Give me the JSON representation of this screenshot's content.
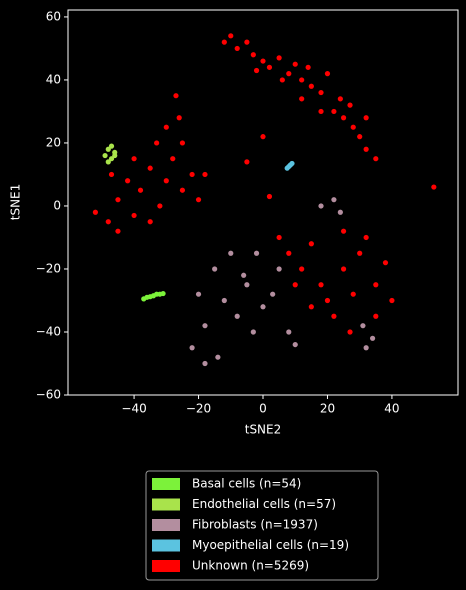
{
  "chart_data": {
    "type": "scatter",
    "x_label": "tSNE2",
    "y_label": "tSNE1",
    "xlim": [
      -60.5,
      60.5
    ],
    "ylim": [
      -60,
      62.2
    ],
    "xticks": [
      {
        "value": -40,
        "label": "−40"
      },
      {
        "value": -20,
        "label": "−20"
      },
      0,
      20,
      40
    ],
    "yticks": [
      {
        "value": -60,
        "label": "−60"
      },
      {
        "value": -40,
        "label": "−40"
      },
      {
        "value": -20,
        "label": "−20"
      },
      0,
      20,
      40,
      60
    ],
    "legend_position": "below",
    "series": [
      {
        "name": "Basal cells (n=54)",
        "color": "#7cf23a",
        "x": [
          -37,
          -36,
          -35,
          -34,
          -33,
          -32,
          -31
        ],
        "values": [
          -29.5,
          -29,
          -28.8,
          -28.5,
          -28,
          -28,
          -27.8
        ]
      },
      {
        "name": "Endothelial cells (n=57)",
        "color": "#a9e34b",
        "x": [
          -49,
          -48,
          -47,
          -47,
          -46,
          -48,
          -46
        ],
        "values": [
          16,
          18,
          15,
          19,
          17,
          14,
          16
        ]
      },
      {
        "name": "Fibroblasts (n=1937)",
        "color": "#b38e9f",
        "x": [
          -20,
          -15,
          -10,
          -5,
          -8,
          -12,
          -18,
          -3,
          0,
          3,
          5,
          -22,
          -18,
          -14,
          -6,
          -2,
          8,
          10,
          18,
          22,
          24,
          31,
          34,
          32
        ],
        "values": [
          -28,
          -20,
          -15,
          -25,
          -35,
          -30,
          -38,
          -40,
          -32,
          -28,
          -20,
          -45,
          -50,
          -48,
          -22,
          -15,
          -40,
          -44,
          0,
          2,
          -2,
          -38,
          -42,
          -45
        ]
      },
      {
        "name": "Myoepithelial cells (n=19)",
        "color": "#5bc3e0",
        "x": [
          8,
          8.5,
          9,
          7.5
        ],
        "values": [
          12.5,
          13,
          13.5,
          12
        ]
      },
      {
        "name": "Unknown (n=5269)",
        "color": "#ff0000",
        "x": [
          -10,
          -8,
          -5,
          -12,
          -3,
          0,
          2,
          5,
          8,
          10,
          12,
          15,
          18,
          14,
          20,
          22,
          25,
          28,
          30,
          32,
          35,
          24,
          27,
          32,
          18,
          12,
          6,
          -2,
          -52,
          -48,
          -45,
          -42,
          -40,
          -38,
          -35,
          -32,
          -30,
          -28,
          -25,
          -22,
          -20,
          -18,
          -30,
          -26,
          -27,
          -35,
          -45,
          -40,
          -33,
          -25,
          -47,
          5,
          8,
          12,
          15,
          18,
          20,
          22,
          25,
          28,
          30,
          32,
          35,
          38,
          40,
          27,
          15,
          10,
          25,
          35,
          53,
          2,
          0,
          -5
        ],
        "values": [
          54,
          50,
          52,
          52,
          48,
          46,
          44,
          47,
          42,
          45,
          40,
          38,
          36,
          44,
          42,
          30,
          28,
          25,
          22,
          18,
          15,
          34,
          32,
          28,
          30,
          34,
          40,
          43,
          -2,
          -5,
          2,
          8,
          -3,
          5,
          12,
          0,
          8,
          15,
          20,
          10,
          2,
          10,
          25,
          28,
          35,
          -5,
          -8,
          15,
          20,
          5,
          10,
          -10,
          -15,
          -20,
          -12,
          -25,
          -30,
          -35,
          -20,
          -28,
          -15,
          -10,
          -25,
          -18,
          -30,
          -40,
          -32,
          -25,
          -8,
          -35,
          6,
          3,
          22,
          14
        ]
      }
    ]
  }
}
